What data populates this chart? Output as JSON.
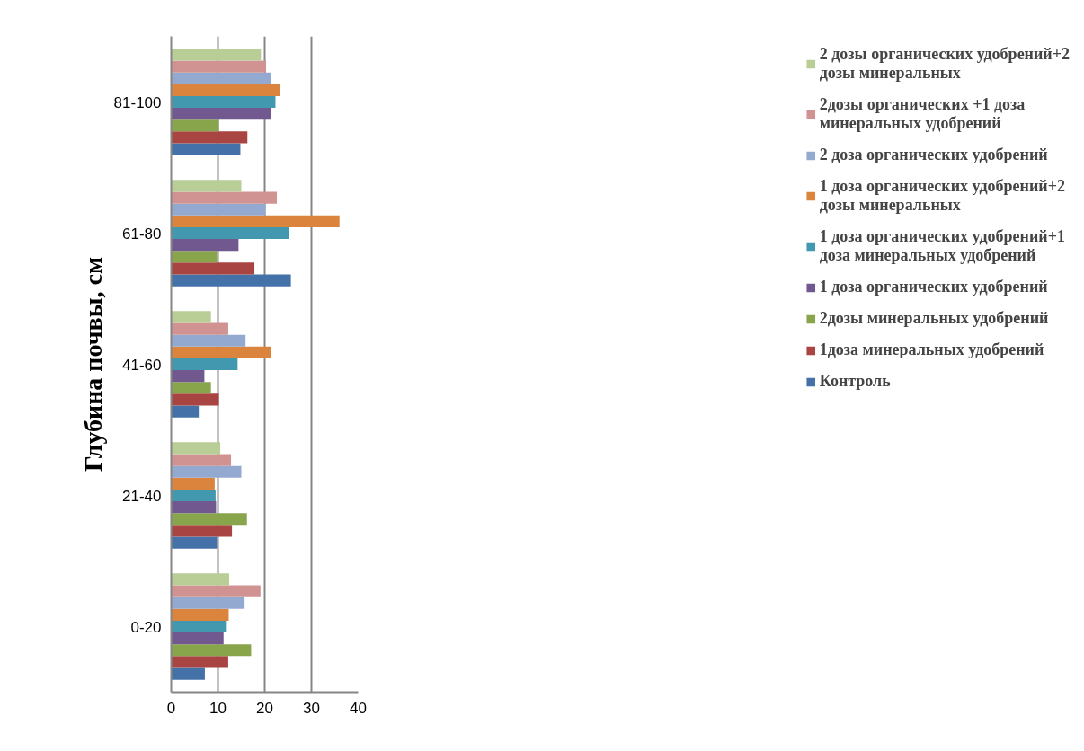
{
  "chart_data": {
    "type": "bar",
    "orientation": "horizontal",
    "ylabel": "Глубина почвы, см",
    "categories": [
      "81-100",
      "61-80",
      "41-60",
      "21-40",
      "0-20"
    ],
    "xlim": [
      0,
      40
    ],
    "xticks": [
      0,
      10,
      20,
      30,
      40
    ],
    "grid": "x",
    "legend": "right",
    "series": [
      {
        "name": "Контроль",
        "color": "#4472a8",
        "values": [
          14.8,
          25.6,
          5.9,
          9.8,
          7.2
        ]
      },
      {
        "name": "1доза минеральных удобрений",
        "color": "#a84441",
        "values": [
          16.3,
          17.8,
          10.2,
          13.0,
          12.2
        ]
      },
      {
        "name": "2дозы минеральных удобрений",
        "color": "#89a54c",
        "values": [
          10.2,
          9.8,
          8.5,
          16.2,
          17.1
        ]
      },
      {
        "name": "1 доза органических удобрений",
        "color": "#71588f",
        "values": [
          21.4,
          14.4,
          7.1,
          9.6,
          11.2
        ]
      },
      {
        "name": "1 доза органических удобрений+1 доза минеральных удобрений",
        "color": "#4198af",
        "values": [
          22.3,
          25.2,
          14.2,
          9.5,
          11.7
        ]
      },
      {
        "name": "1 доза органических удобрений+2 дозы минеральных",
        "color": "#db843d",
        "values": [
          23.3,
          36.0,
          21.4,
          9.3,
          12.3
        ]
      },
      {
        "name": "2 доза органических удобрений",
        "color": "#93a9cf",
        "values": [
          21.4,
          20.2,
          15.9,
          15.0,
          15.7
        ]
      },
      {
        "name": "2дозы органических +1 доза минеральных удобрений",
        "color": "#d19392",
        "values": [
          20.3,
          22.6,
          12.2,
          12.8,
          19.1
        ]
      },
      {
        "name": "2 дозы органических удобрений+2 дозы минеральных",
        "color": "#b9cd96",
        "values": [
          19.2,
          15.0,
          8.5,
          10.5,
          12.4
        ]
      }
    ]
  }
}
